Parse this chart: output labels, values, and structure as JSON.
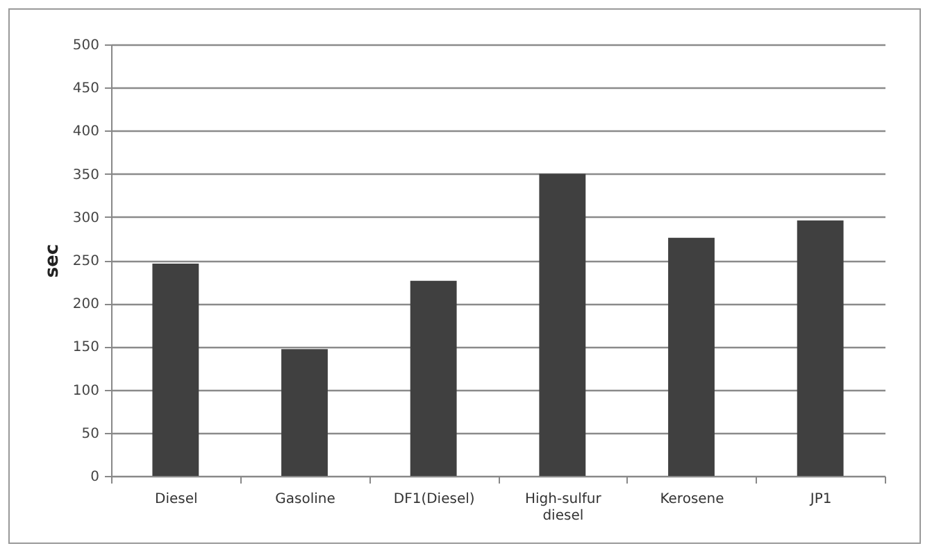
{
  "chart_data": {
    "type": "bar",
    "ylabel": "sec",
    "categories": [
      "Diesel",
      "Gasoline",
      "DF1(Diesel)",
      "High-sulfur diesel",
      "Kerosene",
      "JP1"
    ],
    "values": [
      246,
      147,
      226,
      350,
      276,
      296
    ],
    "color": "#404040",
    "ylim": [
      0,
      500
    ],
    "yticks": [
      0,
      50,
      100,
      150,
      200,
      250,
      300,
      350,
      400,
      450,
      500
    ],
    "grid": "y"
  }
}
